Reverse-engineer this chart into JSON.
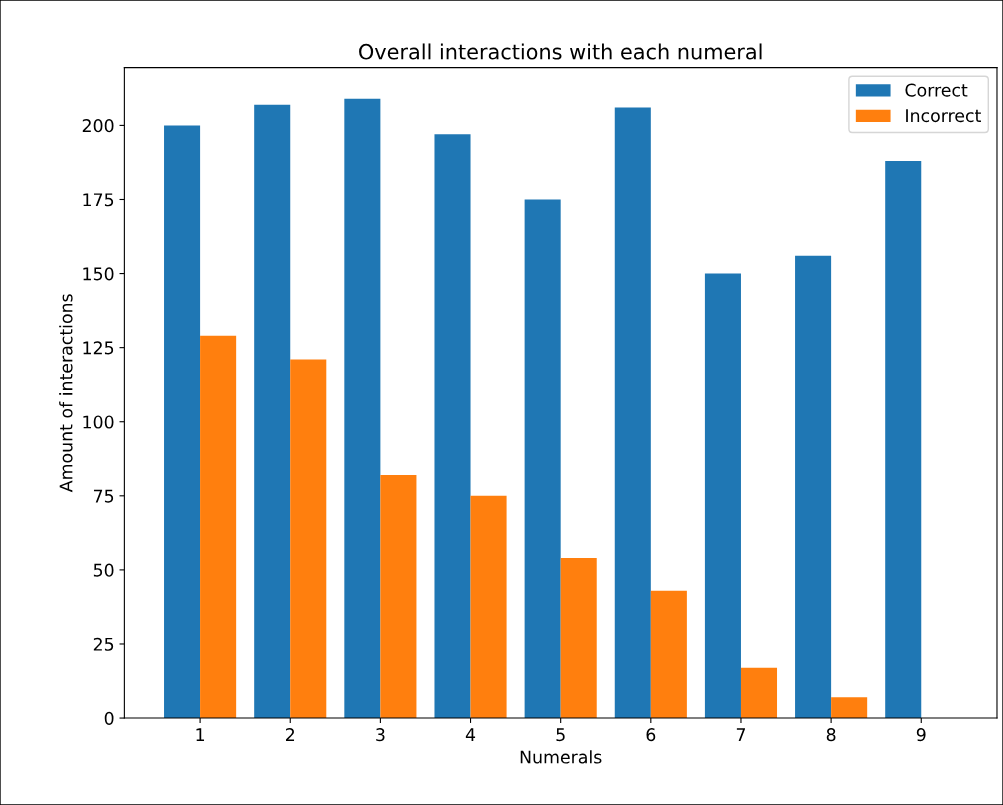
{
  "chart_data": {
    "type": "bar",
    "title": "Overall interactions with each numeral",
    "xlabel": "Numerals",
    "ylabel": "Amount of interactions",
    "categories": [
      "1",
      "2",
      "3",
      "4",
      "5",
      "6",
      "7",
      "8",
      "9"
    ],
    "series": [
      {
        "name": "Correct",
        "color": "#1f77b4",
        "values": [
          200,
          207,
          209,
          197,
          175,
          206,
          150,
          156,
          188
        ]
      },
      {
        "name": "Incorrect",
        "color": "#ff7f0e",
        "values": [
          129,
          121,
          82,
          75,
          54,
          43,
          17,
          7,
          0
        ]
      }
    ],
    "ylim": [
      0,
      219.5
    ],
    "yticks": [
      0,
      25,
      50,
      75,
      100,
      125,
      150,
      175,
      200
    ],
    "legend": "top right",
    "grid": false
  }
}
